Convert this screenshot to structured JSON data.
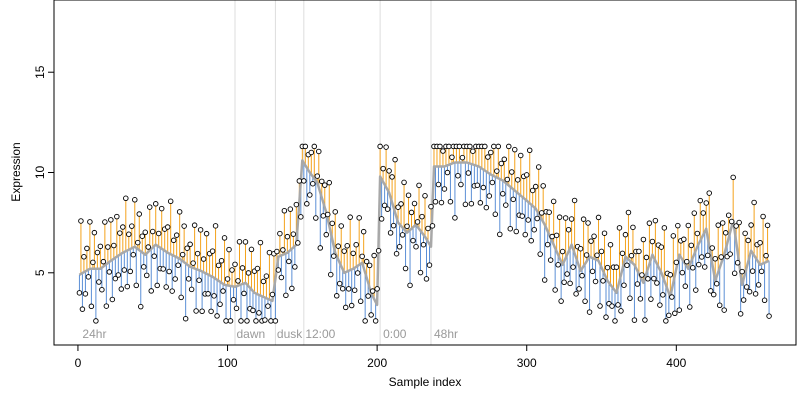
{
  "chart_data": {
    "type": "scatter",
    "xlabel": "Sample index",
    "ylabel": "Expression",
    "xlim": [
      -16,
      480
    ],
    "ylim": [
      1.4,
      18.6
    ],
    "x_ticks": [
      0,
      100,
      200,
      300,
      400
    ],
    "y_ticks": [
      5,
      10,
      15
    ],
    "grid": false,
    "legend": "none",
    "colors": {
      "smooth_line": "#a8a8a8",
      "residual_above": "#f4a21b",
      "residual_below": "#5b8fd6",
      "marker_fill": "#ffffff",
      "marker_stroke": "#000000",
      "divider": "#dcdcdc",
      "phase_label": "#9a9a9a"
    },
    "vertical_lines": [
      105,
      132,
      151,
      202,
      236
    ],
    "phase_labels": [
      {
        "x": 3,
        "label": "24hr"
      },
      {
        "x": 106,
        "label": "dawn"
      },
      {
        "x": 133,
        "label": "dusk"
      },
      {
        "x": 152,
        "label": "12:00"
      },
      {
        "x": 204,
        "label": "0:00"
      },
      {
        "x": 238,
        "label": "48hr"
      }
    ],
    "smooth_knots": [
      [
        1,
        4.9
      ],
      [
        8,
        5.2
      ],
      [
        15,
        5.2
      ],
      [
        22,
        5.6
      ],
      [
        30,
        6.0
      ],
      [
        38,
        6.3
      ],
      [
        45,
        5.9
      ],
      [
        52,
        6.4
      ],
      [
        60,
        6.0
      ],
      [
        68,
        5.7
      ],
      [
        75,
        5.3
      ],
      [
        82,
        5.1
      ],
      [
        90,
        4.8
      ],
      [
        98,
        4.4
      ],
      [
        105,
        4.3
      ],
      [
        112,
        4.5
      ],
      [
        118,
        4.0
      ],
      [
        124,
        3.8
      ],
      [
        130,
        3.6
      ],
      [
        134,
        5.8
      ],
      [
        140,
        6.0
      ],
      [
        146,
        6.4
      ],
      [
        150,
        10.6
      ],
      [
        155,
        10.0
      ],
      [
        160,
        9.5
      ],
      [
        166,
        8.0
      ],
      [
        172,
        6.0
      ],
      [
        178,
        5.0
      ],
      [
        184,
        5.2
      ],
      [
        190,
        5.5
      ],
      [
        196,
        4.0
      ],
      [
        200,
        3.4
      ],
      [
        202,
        9.8
      ],
      [
        208,
        9.0
      ],
      [
        214,
        7.5
      ],
      [
        220,
        7.0
      ],
      [
        226,
        7.4
      ],
      [
        232,
        6.8
      ],
      [
        236,
        6.3
      ],
      [
        238,
        10.3
      ],
      [
        245,
        10.3
      ],
      [
        252,
        10.5
      ],
      [
        260,
        10.5
      ],
      [
        268,
        10.3
      ],
      [
        276,
        9.9
      ],
      [
        284,
        9.6
      ],
      [
        292,
        9.1
      ],
      [
        300,
        8.6
      ],
      [
        306,
        8.2
      ],
      [
        312,
        7.4
      ],
      [
        318,
        6.4
      ],
      [
        324,
        5.4
      ],
      [
        330,
        6.4
      ],
      [
        336,
        5.1
      ],
      [
        342,
        5.8
      ],
      [
        348,
        5.6
      ],
      [
        354,
        4.6
      ],
      [
        360,
        4.0
      ],
      [
        366,
        5.8
      ],
      [
        372,
        5.4
      ],
      [
        378,
        4.5
      ],
      [
        384,
        5.9
      ],
      [
        390,
        5.0
      ],
      [
        396,
        3.8
      ],
      [
        402,
        5.9
      ],
      [
        408,
        5.2
      ],
      [
        414,
        6.3
      ],
      [
        420,
        7.2
      ],
      [
        426,
        4.6
      ],
      [
        432,
        5.9
      ],
      [
        438,
        7.6
      ],
      [
        444,
        4.4
      ],
      [
        450,
        6.1
      ],
      [
        456,
        5.4
      ],
      [
        462,
        5.6
      ]
    ],
    "residual_pattern": [
      1.6,
      -0.9,
      2.2,
      -2.0,
      0.7,
      -1.4,
      1.1,
      -0.3,
      2.6,
      -1.7,
      0.4,
      1.8,
      -2.3,
      0.9,
      -0.6,
      1.4,
      -1.1,
      0.2,
      2.4,
      -1.9,
      1.0,
      -0.5,
      1.7,
      -2.2,
      0.6,
      -1.3,
      2.0,
      -0.8,
      1.2,
      -1.6
    ],
    "point_count": 462
  }
}
